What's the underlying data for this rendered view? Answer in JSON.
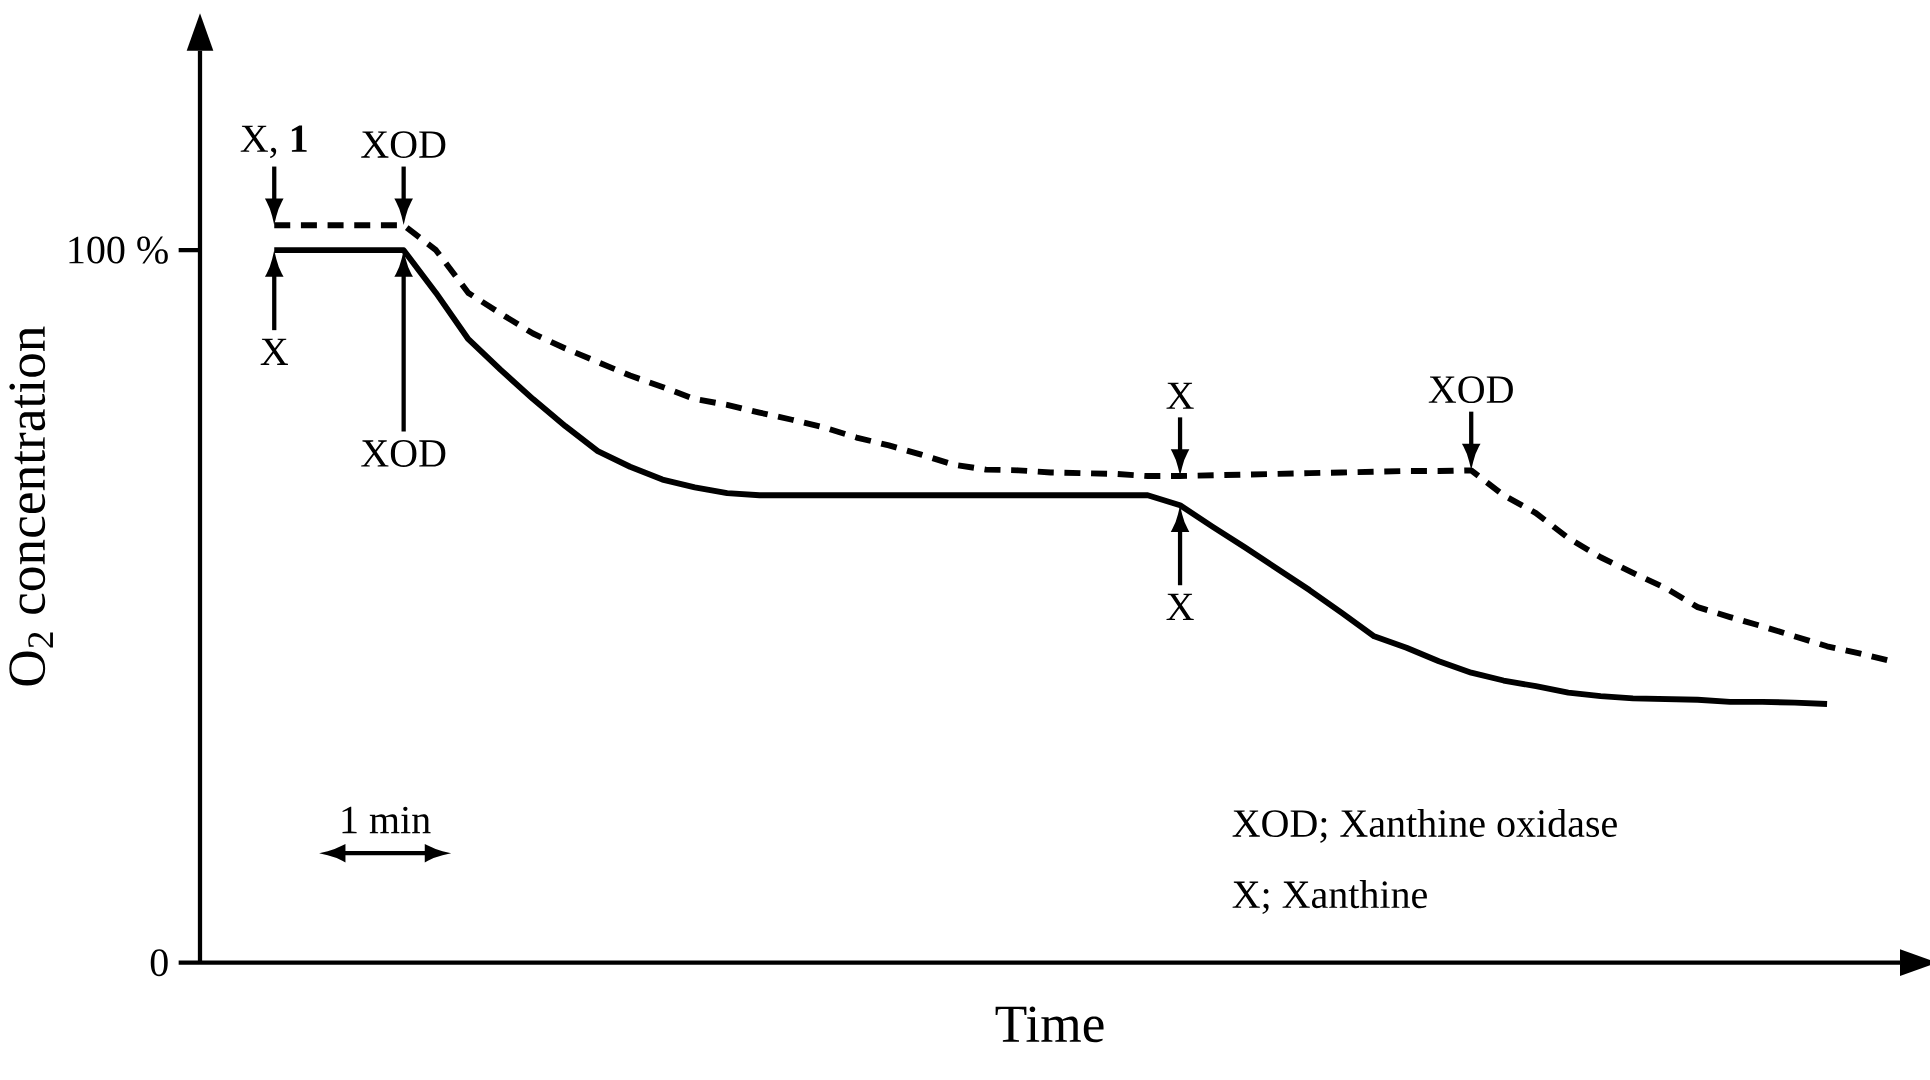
{
  "chart_data": {
    "type": "line",
    "xlabel": "Time",
    "ylabel": "O$_{2}$ concentration",
    "categories": [
      null,
      null,
      null,
      null,
      null,
      null,
      null,
      null,
      null,
      null,
      null,
      null,
      null,
      null,
      null,
      null,
      null,
      null,
      null,
      null,
      null,
      null,
      null,
      null,
      null,
      null,
      null,
      null,
      null,
      null,
      null,
      null,
      null,
      null,
      null,
      null,
      null,
      null,
      null,
      null,
      null,
      null,
      null,
      null,
      null,
      null,
      null,
      null,
      null,
      null,
      null
    ],
    "ylim": [
      0,
      128
    ],
    "yticks": [
      0,
      {
        "value": 100,
        "label": "100 %"
      }
    ],
    "tick_labels": "y",
    "series": [
      {
        "color": "#000000",
        "line_style": "solid",
        "values": [
          100,
          100,
          100,
          100,
          100,
          94.0,
          87.5,
          83.2,
          79.1,
          75.3,
          71.8,
          69.6,
          67.8,
          66.7,
          65.9,
          65.6,
          65.6,
          65.6,
          65.6,
          65.6,
          65.6,
          65.6,
          65.6,
          65.6,
          65.6,
          65.6,
          65.6,
          65.6,
          64.2,
          61.2,
          58.3,
          55.3,
          52.3,
          49.1,
          45.8,
          44.2,
          42.3,
          40.7,
          39.6,
          38.8,
          37.9,
          37.4,
          37.1,
          37.0,
          36.9,
          36.6,
          36.6,
          36.5,
          36.3,
          null,
          null
        ]
      },
      {
        "color": "#000000",
        "line_style": "dashed",
        "values": [
          103.5,
          103.5,
          103.5,
          103.5,
          103.5,
          100.0,
          94.0,
          91.1,
          88.3,
          86.2,
          84.3,
          82.4,
          80.8,
          79.1,
          78.3,
          77.2,
          76.2,
          75.1,
          73.7,
          72.6,
          71.3,
          69.9,
          69.2,
          69.1,
          68.8,
          68.7,
          68.6,
          68.3,
          68.3,
          68.4,
          68.5,
          68.6,
          68.7,
          68.8,
          68.9,
          69.0,
          69.0,
          69.1,
          65.6,
          63.1,
          59.6,
          56.9,
          54.7,
          52.6,
          49.9,
          48.5,
          47.2,
          45.8,
          44.4,
          43.4,
          42.3
        ]
      }
    ],
    "annotations": [
      "X, **1**",
      "X",
      "XOD",
      "XOD",
      "X",
      "X",
      "XOD",
      "1 min",
      "XOD; Xanthine oxidase",
      "X; Xanthine"
    ]
  }
}
